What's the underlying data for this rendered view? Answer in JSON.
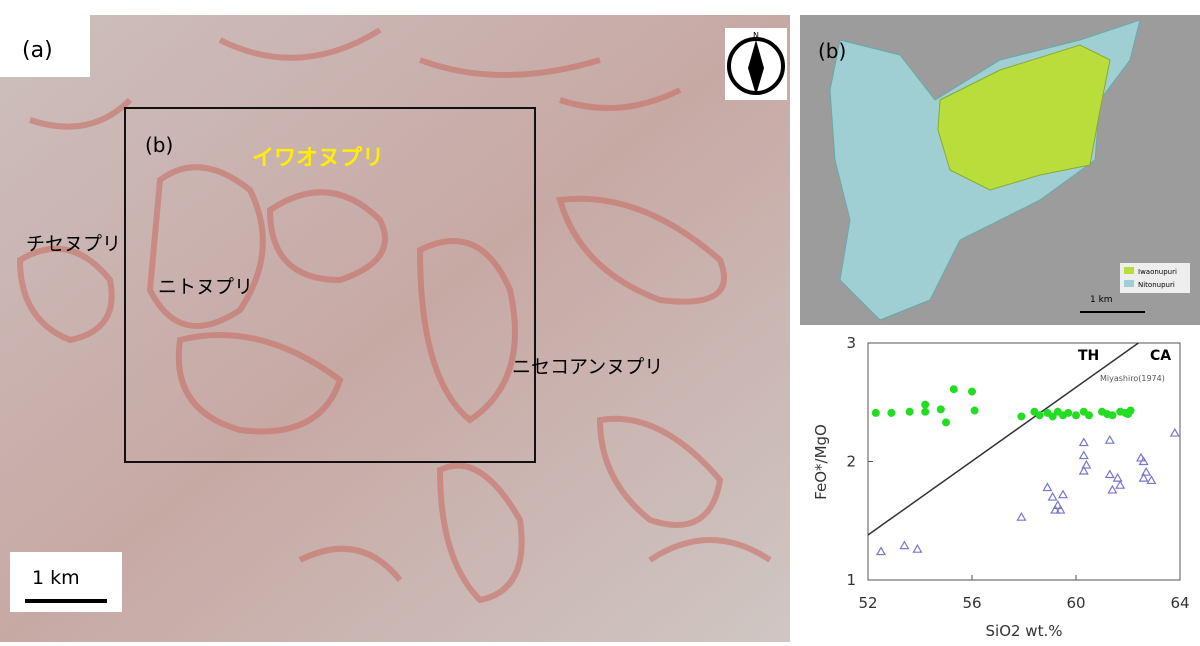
{
  "map_a": {
    "panel_label": "(a)",
    "inset_label": "(b)",
    "labels": [
      "イワオヌプリ",
      "チセヌプリ",
      "ニトヌプリ",
      "ニセコアンヌプリ"
    ],
    "scale": "1 km",
    "north": "N"
  },
  "map_b": {
    "panel_label": "(b)",
    "legend": [
      "Iwaonupuri",
      "Nitonupuri"
    ],
    "scale": "1 km"
  },
  "chart_data": {
    "type": "scatter",
    "xlabel": "SiO2 wt.%",
    "ylabel": "FeO*/MgO",
    "annotations": [
      "TH",
      "CA",
      "Miyashiro(1974)"
    ],
    "xlim": [
      52,
      64
    ],
    "xticks": [
      52,
      56,
      60,
      64
    ],
    "ylim": [
      1,
      3
    ],
    "yticks": [
      1,
      2,
      3
    ],
    "boundary": {
      "x": [
        52,
        62.4
      ],
      "values": [
        1.38,
        3
      ]
    },
    "series": [
      {
        "color": "#22dd22",
        "marker": "circle",
        "x": [
          52.3,
          52.9,
          53.6,
          54.2,
          54.2,
          54.8,
          55.0,
          55.3,
          56.1,
          56.0,
          57.9,
          58.4,
          58.6,
          58.9,
          59.1,
          59.3,
          59.5,
          59.7,
          60.0,
          60.3,
          60.5,
          61.0,
          61.2,
          61.4,
          61.7,
          61.9,
          62.0,
          62.1
        ],
        "values": [
          2.41,
          2.41,
          2.42,
          2.48,
          2.42,
          2.44,
          2.33,
          2.61,
          2.43,
          2.59,
          2.38,
          2.42,
          2.39,
          2.41,
          2.38,
          2.42,
          2.39,
          2.41,
          2.39,
          2.42,
          2.39,
          2.42,
          2.4,
          2.39,
          2.42,
          2.41,
          2.4,
          2.43
        ]
      },
      {
        "color": "#7777cc",
        "marker": "triangle",
        "x": [
          52.5,
          53.4,
          53.9,
          57.9,
          58.9,
          59.1,
          59.3,
          59.4,
          59.2,
          59.5,
          60.3,
          60.4,
          60.3,
          60.3,
          61.3,
          61.3,
          61.7,
          61.4,
          61.6,
          62.5,
          62.6,
          62.7,
          62.6,
          63.8,
          62.9
        ],
        "values": [
          1.24,
          1.29,
          1.26,
          1.53,
          1.78,
          1.7,
          1.63,
          1.59,
          1.59,
          1.72,
          1.92,
          1.97,
          2.05,
          2.16,
          2.18,
          1.89,
          1.8,
          1.76,
          1.86,
          2.03,
          2.0,
          1.91,
          1.86,
          2.24,
          1.84
        ]
      }
    ]
  }
}
